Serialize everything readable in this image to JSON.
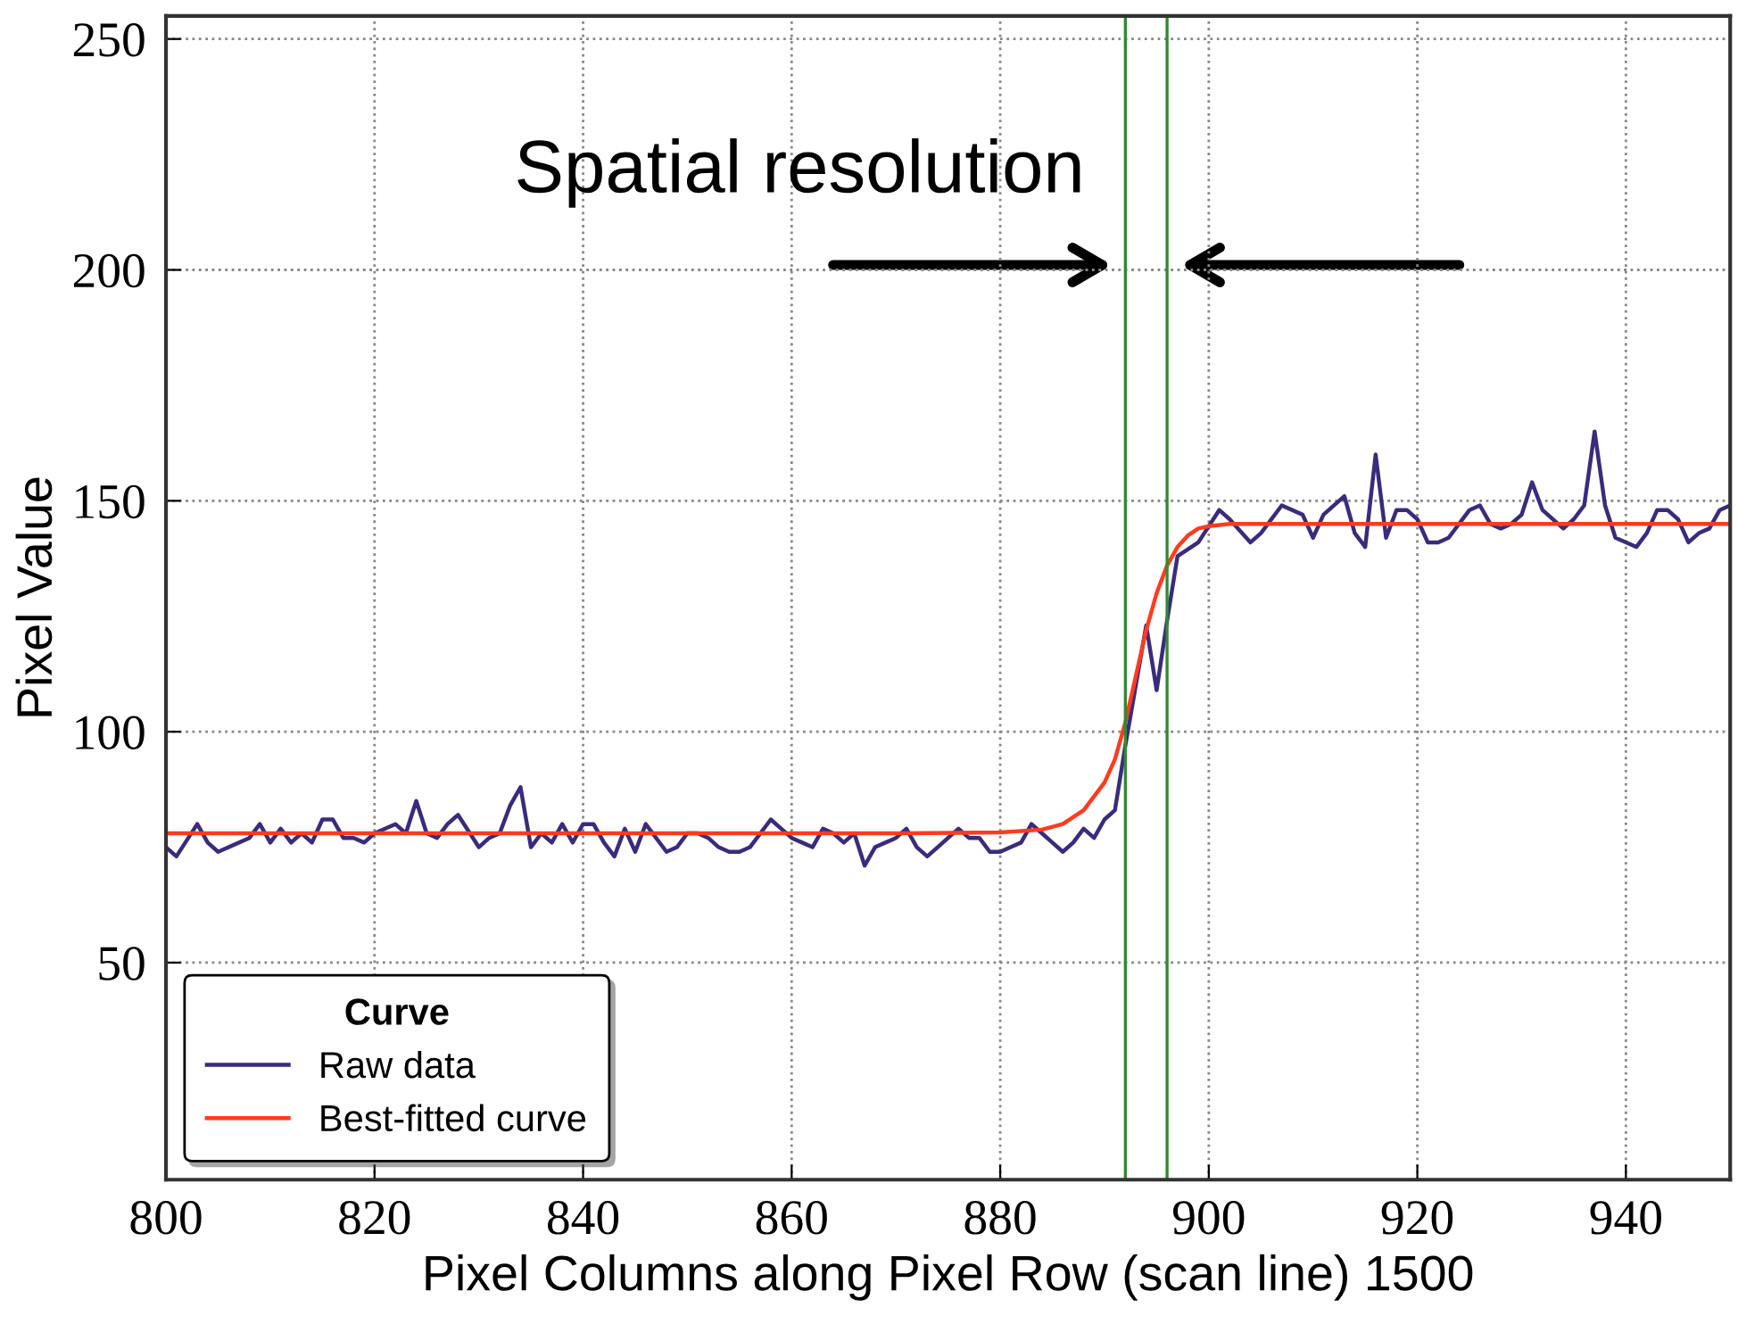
{
  "chart_data": {
    "type": "line",
    "xlabel": "Pixel Columns along Pixel Row (scan line) 1500",
    "ylabel": "Pixel Value",
    "legend_title": "Curve",
    "annotations": [
      "Spatial resolution"
    ],
    "series": [
      {
        "name": "Raw data",
        "color": "#3b2a7e",
        "x": [
          800,
          801,
          803,
          804,
          805,
          808,
          809,
          810,
          811,
          812,
          813,
          814,
          815,
          816,
          817,
          818,
          819,
          820,
          822,
          823,
          824,
          825,
          826,
          827,
          828,
          830,
          831,
          832,
          833,
          834,
          835,
          836,
          837,
          838,
          839,
          840,
          841,
          842,
          843,
          844,
          845,
          846,
          848,
          849,
          850,
          851,
          852,
          853,
          854,
          855,
          856,
          858,
          859,
          860,
          861,
          862,
          863,
          864,
          865,
          866,
          867,
          868,
          869,
          870,
          871,
          872,
          873,
          874,
          875,
          876,
          877,
          878,
          879,
          880,
          881,
          882,
          883,
          884,
          885,
          886,
          887,
          888,
          889,
          890,
          891,
          892,
          893,
          894,
          895,
          896,
          897,
          899,
          901,
          902,
          904,
          905,
          907,
          909,
          910,
          911,
          913,
          914,
          915,
          916,
          917,
          918,
          919,
          920,
          921,
          922,
          923,
          925,
          926,
          927,
          928,
          929,
          930,
          931,
          932,
          934,
          935,
          936,
          937,
          938,
          939,
          941,
          942,
          943,
          944,
          945,
          946,
          947,
          948,
          949,
          950
        ],
        "values": [
          75,
          73,
          80,
          76,
          74,
          77,
          80,
          76,
          79,
          76,
          78,
          76,
          81,
          81,
          77,
          77,
          76,
          78,
          80,
          78,
          85,
          78,
          77,
          80,
          82,
          75,
          77,
          78,
          84,
          88,
          75,
          78,
          76,
          80,
          76,
          80,
          80,
          76,
          73,
          79,
          74,
          80,
          74,
          75,
          78,
          78,
          77,
          75,
          74,
          74,
          75,
          81,
          79,
          77,
          76,
          75,
          79,
          78,
          76,
          78,
          71,
          75,
          76,
          77,
          79,
          75,
          73,
          75,
          77,
          79,
          77,
          77,
          74,
          74,
          75,
          76,
          80,
          78,
          76,
          74,
          76,
          79,
          77,
          81,
          83,
          97,
          110,
          123,
          109,
          124,
          138,
          141,
          148,
          146,
          141,
          143,
          149,
          147,
          142,
          147,
          151,
          143,
          140,
          160,
          142,
          148,
          148,
          146,
          141,
          141,
          142,
          148,
          149,
          145,
          144,
          145,
          147,
          154,
          148,
          144,
          146,
          149,
          165,
          149,
          142,
          140,
          143,
          148,
          148,
          146,
          141,
          143,
          144,
          148,
          149
        ]
      },
      {
        "name": "Best-fitted curve",
        "color": "#ff3b1f",
        "x": [
          800,
          870,
          880,
          884,
          886,
          888,
          889,
          890,
          891,
          892,
          893,
          894,
          895,
          896,
          897,
          898,
          899,
          900,
          902,
          910,
          950
        ],
        "values": [
          78,
          78,
          78.2,
          78.8,
          80,
          83,
          86,
          89,
          94,
          102,
          112,
          122,
          130,
          136,
          140,
          142.5,
          144,
          144.5,
          145,
          145,
          145
        ]
      }
    ],
    "ref_lines": [
      {
        "axis": "x",
        "value": 892,
        "color": "#2e8b2e"
      },
      {
        "axis": "x",
        "value": 896,
        "color": "#2e8b2e"
      }
    ],
    "xlim": [
      800,
      950
    ],
    "ylim": [
      3,
      255
    ],
    "xticks": [
      800,
      820,
      840,
      860,
      880,
      900,
      920,
      940
    ],
    "yticks": [
      50,
      100,
      150,
      200,
      250
    ],
    "grid": true,
    "legend": "bottom left",
    "marker": "none",
    "line_style": "solid"
  }
}
